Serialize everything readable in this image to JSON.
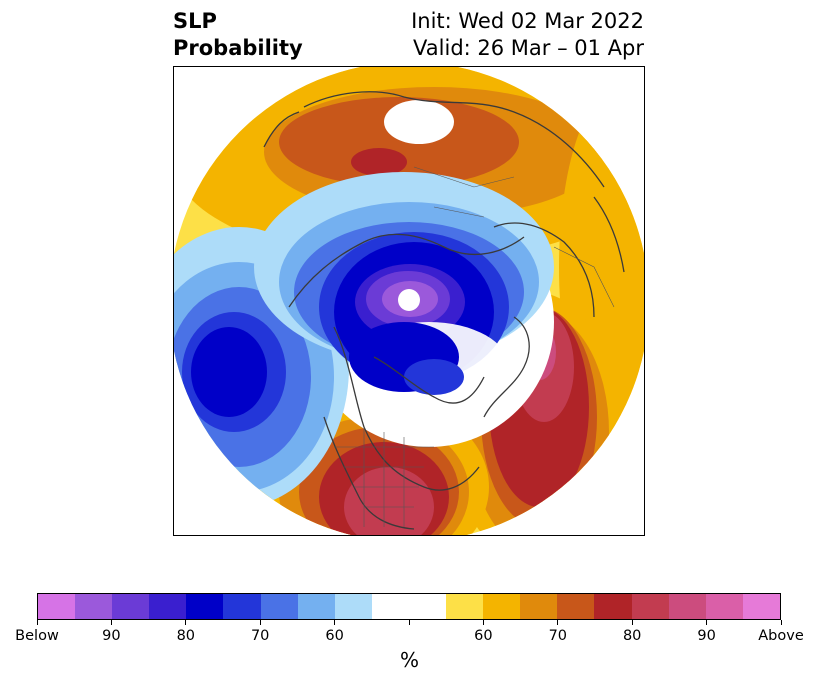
{
  "title": {
    "left_line1": "SLP",
    "left_line2": "Probability",
    "right_line1": "Init: Wed 02 Mar 2022",
    "right_line2": "Valid: 26 Mar – 01 Apr"
  },
  "colorbar": {
    "unit": "%",
    "colors": [
      "#d673e6",
      "#9b59db",
      "#6b3bd6",
      "#3a1fcf",
      "#0000c8",
      "#2336d9",
      "#4a72e6",
      "#74b0f0",
      "#addcf9",
      "#ffffff",
      "#ffffff",
      "#fde047",
      "#f4b400",
      "#e08a0c",
      "#c8571a",
      "#b02428",
      "#c23c50",
      "#cc4c7e",
      "#da5fa8",
      "#e67ad8"
    ],
    "tick_labels": [
      "Below",
      "90",
      "80",
      "70",
      "60",
      "",
      "60",
      "70",
      "80",
      "90",
      "Above"
    ]
  },
  "colors": {
    "below_strong": "#0000c8",
    "below_mid": "#4a72e6",
    "below_light": "#addcf9",
    "above_light": "#fde047",
    "above_mid": "#f4b400",
    "above_orange": "#c8571a",
    "above_red": "#b02428",
    "above_pink": "#cc4c7e"
  }
}
